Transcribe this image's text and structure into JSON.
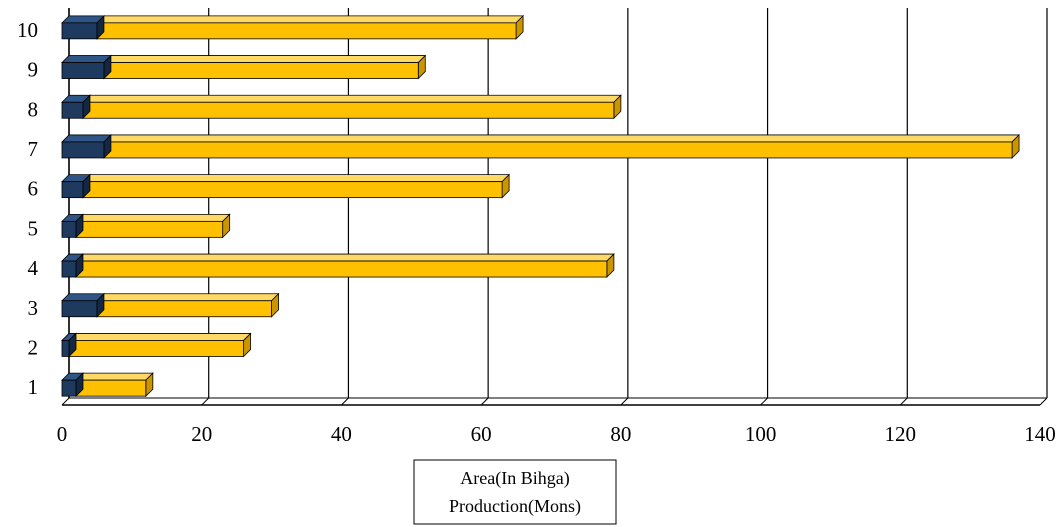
{
  "chart_data": {
    "type": "bar",
    "orientation": "horizontal",
    "style": "3d-stacked",
    "categories": [
      "1",
      "2",
      "3",
      "4",
      "5",
      "6",
      "7",
      "8",
      "9",
      "10"
    ],
    "series": [
      {
        "name": "Area(In Bihga)",
        "values": [
          2,
          1,
          5,
          2,
          2,
          3,
          6,
          3,
          6,
          5
        ]
      },
      {
        "name": "Production(Mons)",
        "values": [
          10,
          25,
          25,
          76,
          21,
          60,
          130,
          76,
          45,
          60
        ]
      }
    ],
    "xlim": [
      0,
      140
    ],
    "xticks": [
      "0",
      "20",
      "40",
      "60",
      "80",
      "100",
      "120",
      "140"
    ],
    "grid": "vertical",
    "legend_position": "bottom",
    "colors": {
      "Area(In Bihga)": "#1f3a5f",
      "Production(Mons)": "#ffc000"
    }
  }
}
